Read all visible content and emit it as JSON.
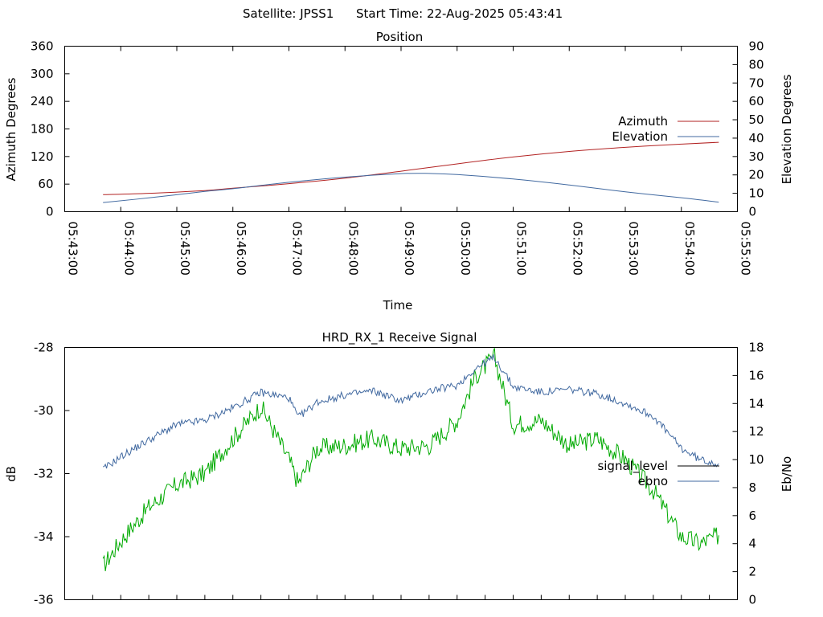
{
  "header": {
    "satellite_text": "Satellite: JPSS1",
    "start_time_text": "Start Time: 22-Aug-2025 05:43:41"
  },
  "chart_data": [
    {
      "type": "line",
      "title": "Position",
      "xlabel": "Time",
      "ylabel": "Azimuth Degrees",
      "y2label": "Elevation Degrees",
      "xlim_minutes": [
        "05:43:00",
        "05:55:00"
      ],
      "ylim": [
        0,
        360
      ],
      "y2lim": [
        0,
        90
      ],
      "yticks": [
        0,
        60,
        120,
        180,
        240,
        300,
        360
      ],
      "ytick_labels": [
        "0",
        "60",
        "120",
        "180",
        "240",
        "300",
        "360"
      ],
      "y2ticks": [
        0,
        10,
        20,
        30,
        40,
        50,
        60,
        70,
        80,
        90
      ],
      "y2tick_labels": [
        "0",
        "10",
        "20",
        "30",
        "40",
        "50",
        "60",
        "70",
        "80",
        "90"
      ],
      "xtick_labels": [
        "05:43:00",
        "05:44:00",
        "05:45:00",
        "05:46:00",
        "05:47:00",
        "05:48:00",
        "05:49:00",
        "05:50:00",
        "05:51:00",
        "05:52:00",
        "05:53:00",
        "05:54:00",
        "05:55:00"
      ],
      "legend_position": "right",
      "series": [
        {
          "name": "Azimuth",
          "axis": "left",
          "color": "#b22222",
          "x": [
            "05:43:41",
            "05:44:30",
            "05:45:30",
            "05:46:00",
            "05:47:00",
            "05:48:00",
            "05:49:00",
            "05:50:00",
            "05:51:00",
            "05:52:00",
            "05:53:00",
            "05:54:00",
            "05:54:40"
          ],
          "values": [
            37,
            40,
            46,
            51,
            61,
            73,
            88,
            104,
            119,
            131,
            140,
            147,
            151
          ]
        },
        {
          "name": "Elevation",
          "axis": "right",
          "color": "#4169a0",
          "x": [
            "05:43:41",
            "05:44:30",
            "05:45:30",
            "05:46:00",
            "05:47:00",
            "05:48:00",
            "05:49:00",
            "05:49:30",
            "05:50:00",
            "05:51:00",
            "05:52:00",
            "05:53:00",
            "05:54:00",
            "05:54:40"
          ],
          "values": [
            5,
            7.5,
            11,
            12.5,
            16,
            18.8,
            20.7,
            20.8,
            20.2,
            17.8,
            14.5,
            10.8,
            7.6,
            5.2
          ]
        }
      ]
    },
    {
      "type": "line",
      "title": "HRD_RX_1 Receive Signal",
      "xlabel": "",
      "ylabel": "dB",
      "y2label": "Eb/No",
      "ylim": [
        -36,
        -28
      ],
      "y2lim": [
        0,
        18
      ],
      "yticks": [
        -36,
        -34,
        -32,
        -30,
        -28
      ],
      "ytick_labels": [
        "-36",
        "-34",
        "-32",
        "-30",
        "-28"
      ],
      "y2ticks": [
        0,
        2,
        4,
        6,
        8,
        10,
        12,
        14,
        16,
        18
      ],
      "y2tick_labels": [
        "0",
        "2",
        "4",
        "6",
        "8",
        "10",
        "12",
        "14",
        "16",
        "18"
      ],
      "legend_position": "right",
      "series": [
        {
          "name": "signal_level",
          "axis": "left",
          "color": "#000000",
          "x": [],
          "values": []
        },
        {
          "name": "ebno",
          "axis": "right",
          "color": "#4169a0",
          "x": [
            "05:43:41",
            "05:44:00",
            "05:44:30",
            "05:45:00",
            "05:45:30",
            "05:46:00",
            "05:46:30",
            "05:47:00",
            "05:47:10",
            "05:47:30",
            "05:48:00",
            "05:48:30",
            "05:49:00",
            "05:49:30",
            "05:50:00",
            "05:50:20",
            "05:50:40",
            "05:51:00",
            "05:51:30",
            "05:52:00",
            "05:52:30",
            "05:53:00",
            "05:53:30",
            "05:54:00",
            "05:54:20",
            "05:54:40"
          ],
          "values": [
            9.3,
            10.2,
            11.4,
            12.5,
            12.8,
            13.7,
            14.8,
            14.4,
            13.0,
            14.1,
            14.6,
            14.9,
            14.2,
            14.9,
            15.3,
            16.5,
            17.3,
            15.2,
            14.8,
            15.0,
            14.7,
            14.0,
            13.1,
            10.8,
            10.0,
            9.7
          ]
        },
        {
          "name": "",
          "axis": "right",
          "color": "#00aa00",
          "x": [
            "05:43:41",
            "05:44:00",
            "05:44:30",
            "05:45:00",
            "05:45:30",
            "05:46:00",
            "05:46:30",
            "05:47:00",
            "05:47:10",
            "05:47:30",
            "05:48:00",
            "05:48:30",
            "05:49:00",
            "05:49:30",
            "05:50:00",
            "05:50:20",
            "05:50:40",
            "05:51:00",
            "05:51:30",
            "05:52:00",
            "05:52:30",
            "05:53:00",
            "05:53:30",
            "05:54:00",
            "05:54:20",
            "05:54:40"
          ],
          "values": [
            2.4,
            4.2,
            6.6,
            8.2,
            9.0,
            11.5,
            13.8,
            10.0,
            8.3,
            10.8,
            11.0,
            11.5,
            10.8,
            11.0,
            12.8,
            16.0,
            17.3,
            12.5,
            12.8,
            11.0,
            11.5,
            10.0,
            7.8,
            4.5,
            4.0,
            4.6
          ]
        }
      ]
    }
  ]
}
